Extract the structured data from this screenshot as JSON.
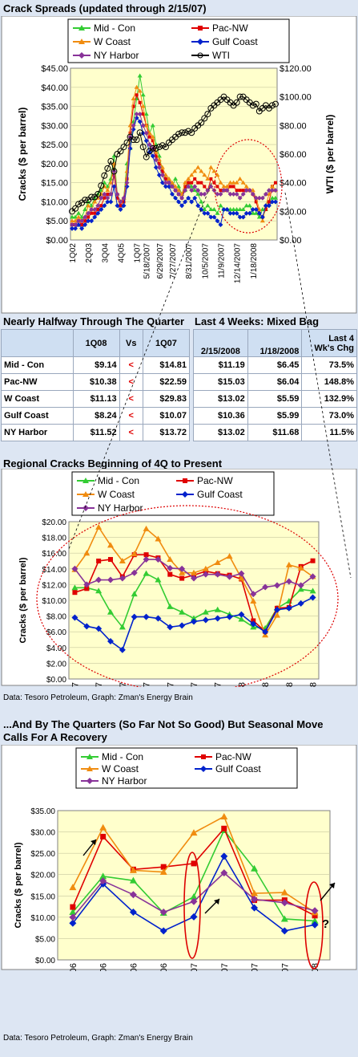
{
  "colors": {
    "mid_con": "#33cc33",
    "pac_nw": "#e00000",
    "w_coast": "#f08c10",
    "gulf_coast": "#0022cc",
    "ny_harbor": "#883399",
    "wti": "#000000",
    "plot_bg": "#ffffcc",
    "ellipse": "#dd0000"
  },
  "chart1": {
    "title": "Crack Spreads (updated through 2/15/07)",
    "legend": [
      "Mid - Con",
      "Pac-NW",
      "W Coast",
      "Gulf Coast",
      "NY Harbor",
      "WTI"
    ],
    "ylabel_left": "Cracks ($ per barrel)",
    "ylabel_right": "WTI ($ per barrel)",
    "yticks_left": [
      "$0.00",
      "$5.00",
      "$10.00",
      "$15.00",
      "$20.00",
      "$25.00",
      "$30.00",
      "$35.00",
      "$40.00",
      "$45.00"
    ],
    "yticks_right": [
      "$0.00",
      "$20.00",
      "$40.00",
      "$60.00",
      "$80.00",
      "$100.00",
      "$120.00"
    ],
    "xticks": [
      "1Q02",
      "2Q03",
      "3Q04",
      "4Q05",
      "1Q07",
      "5/18/2007",
      "6/29/2007",
      "7/27/2007",
      "8/31/2007",
      "10/5/2007",
      "11/9/2007",
      "12/14/2007",
      "1/18/2008"
    ]
  },
  "chart_data": [
    {
      "type": "line",
      "title": "Crack Spreads (updated through 2/15/07)",
      "ylabel": "Cracks ($ per barrel)",
      "ylabel_right": "WTI ($ per barrel)",
      "ylim": [
        0,
        45
      ],
      "ylim_right": [
        0,
        120
      ],
      "x_count": 64,
      "series": [
        {
          "name": "Mid - Con",
          "axis": "left",
          "values": [
            6,
            6,
            7,
            6,
            8,
            10,
            9,
            11,
            12,
            13,
            15,
            14,
            16,
            22,
            12,
            10,
            11,
            20,
            24,
            31,
            37,
            43,
            38,
            33,
            28,
            30,
            25,
            22,
            18,
            16,
            16,
            14,
            16,
            14,
            12,
            13,
            15,
            14,
            13,
            12,
            10,
            8,
            9,
            8,
            8,
            7,
            9,
            8,
            8,
            8,
            8,
            8,
            8,
            8,
            9,
            9,
            7,
            7,
            6,
            8,
            8,
            10,
            11,
            11
          ]
        },
        {
          "name": "Pac-NW",
          "axis": "left",
          "values": [
            4,
            4,
            5,
            4,
            5,
            6,
            7,
            7,
            8,
            9,
            11,
            12,
            12,
            17,
            11,
            9,
            10,
            16,
            28,
            35,
            38,
            36,
            33,
            30,
            27,
            26,
            22,
            20,
            18,
            16,
            15,
            14,
            13,
            12,
            11,
            14,
            15,
            15,
            16,
            15,
            15,
            14,
            13,
            16,
            15,
            14,
            13,
            13,
            13,
            14,
            14,
            13,
            13,
            13,
            13,
            13,
            12,
            10,
            7,
            6,
            8,
            10,
            14,
            15
          ]
        },
        {
          "name": "W Coast",
          "axis": "left",
          "values": [
            5,
            5,
            6,
            5,
            6,
            9,
            8,
            10,
            11,
            12,
            14,
            13,
            15,
            20,
            12,
            10,
            11,
            18,
            30,
            37,
            40,
            39,
            35,
            30,
            28,
            27,
            23,
            21,
            19,
            17,
            16,
            15,
            14,
            13,
            12,
            15,
            16,
            17,
            18,
            19,
            18,
            17,
            16,
            19,
            18,
            17,
            15,
            14,
            14,
            15,
            15,
            15,
            16,
            15,
            14,
            13,
            13,
            11,
            8,
            5,
            9,
            12,
            14,
            13
          ]
        },
        {
          "name": "Gulf Coast",
          "axis": "left",
          "values": [
            3,
            3,
            4,
            3,
            4,
            5,
            5,
            6,
            7,
            8,
            9,
            10,
            10,
            14,
            9,
            8,
            9,
            14,
            24,
            29,
            32,
            31,
            28,
            26,
            23,
            22,
            19,
            17,
            15,
            14,
            14,
            12,
            11,
            10,
            9,
            10,
            11,
            10,
            11,
            9,
            8,
            7,
            7,
            6,
            6,
            5,
            4,
            8,
            8,
            7,
            7,
            7,
            6,
            6,
            7,
            7,
            8,
            8,
            7,
            6,
            9,
            9,
            10,
            10
          ]
        },
        {
          "name": "NY Harbor",
          "axis": "left",
          "values": [
            4,
            4,
            5,
            5,
            6,
            7,
            8,
            8,
            9,
            11,
            12,
            11,
            12,
            18,
            12,
            10,
            11,
            15,
            27,
            30,
            33,
            33,
            30,
            28,
            25,
            24,
            21,
            19,
            17,
            15,
            15,
            14,
            13,
            12,
            11,
            13,
            14,
            13,
            14,
            13,
            12,
            12,
            13,
            14,
            13,
            12,
            12,
            13,
            13,
            12,
            12,
            12,
            11,
            12,
            13,
            13,
            12,
            11,
            11,
            11,
            12,
            13,
            13,
            13
          ]
        },
        {
          "name": "WTI",
          "axis": "right",
          "values": [
            20,
            22,
            25,
            26,
            28,
            28,
            30,
            30,
            32,
            38,
            45,
            50,
            55,
            48,
            60,
            62,
            65,
            68,
            72,
            70,
            70,
            75,
            65,
            58,
            62,
            64,
            64,
            65,
            66,
            65,
            68,
            70,
            72,
            74,
            75,
            75,
            76,
            75,
            78,
            80,
            82,
            85,
            88,
            92,
            94,
            96,
            98,
            100,
            98,
            96,
            94,
            96,
            100,
            100,
            98,
            96,
            94,
            95,
            90,
            92,
            94,
            92,
            94,
            95
          ]
        }
      ]
    },
    {
      "type": "table",
      "title": "Nearly Halfway Through The Quarter",
      "columns": [
        "",
        "1Q08",
        "Vs",
        "1Q07"
      ],
      "rows": [
        [
          "Mid - Con",
          "$9.14",
          "<",
          "$14.81"
        ],
        [
          "Pac-NW",
          "$10.38",
          "<",
          "$22.59"
        ],
        [
          "W Coast",
          "$11.13",
          "<",
          "$29.83"
        ],
        [
          "Gulf Coast",
          "$8.24",
          "<",
          "$10.07"
        ],
        [
          "NY Harbor",
          "$11.52",
          "<",
          "$13.72"
        ]
      ]
    },
    {
      "type": "table",
      "title": "Last 4 Weeks: Mixed Bag",
      "columns": [
        "2/15/2008",
        "1/18/2008",
        "Last 4 Wk's Chg"
      ],
      "rows": [
        [
          "$11.19",
          "$6.45",
          "73.5%"
        ],
        [
          "$15.03",
          "$6.04",
          "148.8%"
        ],
        [
          "$13.02",
          "$5.59",
          "132.9%"
        ],
        [
          "$10.36",
          "$5.99",
          "73.0%"
        ],
        [
          "$13.02",
          "$11.68",
          "11.5%"
        ]
      ]
    },
    {
      "type": "line",
      "title": "Regional Cracks Beginning of 4Q to Present",
      "ylabel": "Cracks ($ per barrel)",
      "ylim": [
        0,
        20
      ],
      "x": [
        "9/28/2007",
        "",
        "10/12/2007",
        "",
        "10/26/2007",
        "",
        "11/9/2007",
        "",
        "11/23/2007",
        "",
        "12/7/2007",
        "",
        "12/21/2007",
        "",
        "1/4/2008",
        "",
        "1/18/2008",
        "",
        "2/1/2008",
        "",
        "2/15/2008"
      ],
      "series": [
        {
          "name": "Mid - Con",
          "values": [
            11.6,
            11.6,
            11.2,
            8.5,
            6.6,
            10.8,
            13.4,
            12.6,
            9.2,
            8.5,
            7.7,
            8.5,
            8.8,
            8.2,
            7.6,
            6.6,
            6.45,
            9.0,
            9.9,
            11.4,
            11.19
          ]
        },
        {
          "name": "Pac-NW",
          "values": [
            11.0,
            11.5,
            15.0,
            15.2,
            13.0,
            15.8,
            15.8,
            15.4,
            13.3,
            12.8,
            13.2,
            13.7,
            13.4,
            13.2,
            12.7,
            7.4,
            6.04,
            9.0,
            9.1,
            14.3,
            15.03
          ]
        },
        {
          "name": "W Coast",
          "values": [
            13.9,
            16.0,
            19.3,
            17.0,
            15.0,
            15.9,
            19.1,
            17.8,
            15.2,
            13.5,
            13.5,
            14.0,
            14.8,
            15.6,
            12.8,
            9.9,
            5.59,
            8.1,
            14.5,
            14.1,
            13.02
          ]
        },
        {
          "name": "Gulf Coast",
          "values": [
            7.8,
            6.7,
            6.4,
            4.8,
            3.7,
            7.9,
            7.9,
            7.7,
            6.6,
            6.8,
            7.3,
            7.5,
            7.7,
            7.9,
            8.2,
            7.0,
            5.99,
            8.8,
            9.0,
            9.6,
            10.36
          ]
        },
        {
          "name": "NY Harbor",
          "values": [
            14.0,
            12.0,
            12.6,
            12.6,
            12.8,
            13.5,
            15.2,
            15.2,
            14.1,
            14.0,
            12.8,
            13.3,
            13.3,
            13.0,
            13.4,
            10.8,
            11.68,
            11.9,
            12.4,
            11.9,
            13.02
          ]
        }
      ]
    },
    {
      "type": "line",
      "title": "...And By The Quarters (So Far Not So Good) But Seasonal Move Calls For A Recovery",
      "ylabel": "Cracks ($ per barrel)",
      "ylim": [
        0,
        35
      ],
      "x": [
        "1Q06",
        "2Q06",
        "3Q06",
        "4Q06",
        "1Q07",
        "2Q07",
        "3Q07",
        "4Q07",
        "1Q08"
      ],
      "series": [
        {
          "name": "Mid - Con",
          "values": [
            11.2,
            19.6,
            18.6,
            11.0,
            14.8,
            30.4,
            21.4,
            9.6,
            9.14
          ]
        },
        {
          "name": "Pac-NW",
          "values": [
            12.4,
            28.9,
            21.2,
            21.8,
            22.6,
            30.8,
            14.0,
            14.0,
            10.38
          ]
        },
        {
          "name": "W Coast",
          "values": [
            17.0,
            31.0,
            21.0,
            20.6,
            29.8,
            33.6,
            15.6,
            15.8,
            11.13
          ]
        },
        {
          "name": "Gulf Coast",
          "values": [
            8.6,
            17.8,
            11.2,
            6.8,
            10.1,
            24.3,
            12.2,
            6.8,
            8.24
          ]
        },
        {
          "name": "NY Harbor",
          "values": [
            10.0,
            18.5,
            15.3,
            11.2,
            13.7,
            20.4,
            14.2,
            13.4,
            11.52
          ]
        }
      ]
    }
  ],
  "tables": {
    "t1": {
      "title": "Nearly Halfway Through The Quarter",
      "col1": "1Q08",
      "col2": "Vs",
      "col3": "1Q07"
    },
    "t2": {
      "title": "Last 4 Weeks: Mixed Bag",
      "col1": "2/15/2008",
      "col2": "1/18/2008",
      "col3a": "Last 4",
      "col3b": "Wk's Chg"
    },
    "rows": [
      {
        "name": "Mid - Con",
        "q108": "$9.14",
        "vs": "<",
        "q107": "$14.81",
        "d1": "$11.19",
        "d2": "$6.45",
        "chg": "73.5%"
      },
      {
        "name": "Pac-NW",
        "q108": "$10.38",
        "vs": "<",
        "q107": "$22.59",
        "d1": "$15.03",
        "d2": "$6.04",
        "chg": "148.8%"
      },
      {
        "name": "W Coast",
        "q108": "$11.13",
        "vs": "<",
        "q107": "$29.83",
        "d1": "$13.02",
        "d2": "$5.59",
        "chg": "132.9%"
      },
      {
        "name": "Gulf Coast",
        "q108": "$8.24",
        "vs": "<",
        "q107": "$10.07",
        "d1": "$10.36",
        "d2": "$5.99",
        "chg": "73.0%"
      },
      {
        "name": "NY Harbor",
        "q108": "$11.52",
        "vs": "<",
        "q107": "$13.72",
        "d1": "$13.02",
        "d2": "$11.68",
        "chg": "11.5%"
      }
    ]
  },
  "chart2": {
    "title": "Regional Cracks Beginning of 4Q to Present",
    "legend": [
      "Mid - Con",
      "Pac-NW",
      "W Coast",
      "Gulf Coast",
      "NY Harbor"
    ],
    "ylabel": "Cracks ($ per barrel)",
    "yticks": [
      "$0.00",
      "$2.00",
      "$4.00",
      "$6.00",
      "$8.00",
      "$10.00",
      "$12.00",
      "$14.00",
      "$16.00",
      "$18.00",
      "$20.00"
    ],
    "xticks": [
      "9/28/2007",
      "10/12/2007",
      "10/26/2007",
      "11/9/2007",
      "11/23/2007",
      "12/7/2007",
      "12/21/2007",
      "1/4/2008",
      "1/18/2008",
      "2/1/2008",
      "2/15/2008"
    ]
  },
  "source1": "Data: Tesoro Petroleum, Graph: Zman's Energy Brain",
  "chart3": {
    "title_line1": "...And By The Quarters (So Far Not So Good) But Seasonal Move",
    "title_line2": "Calls For A Recovery",
    "legend": [
      "Mid - Con",
      "Pac-NW",
      "W Coast",
      "Gulf Coast",
      "NY Harbor"
    ],
    "ylabel": "Cracks ($ per barrel)",
    "yticks": [
      "$0.00",
      "$5.00",
      "$10.00",
      "$15.00",
      "$20.00",
      "$25.00",
      "$30.00",
      "$35.00"
    ],
    "xticks": [
      "1Q06",
      "2Q06",
      "3Q06",
      "4Q06",
      "1Q07",
      "2Q07",
      "3Q07",
      "4Q07",
      "1Q08"
    ],
    "annotation": "?"
  },
  "source2": "Data: Tesoro Petroleum, Graph: Zman's Energy Brain"
}
